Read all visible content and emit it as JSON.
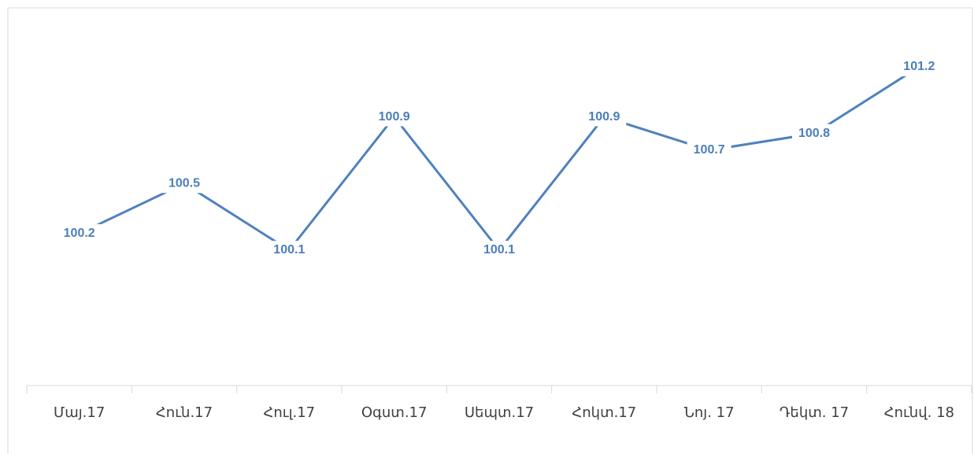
{
  "chart_data": {
    "type": "line",
    "categories": [
      "Մայ.17",
      "Հուն.17",
      "Հուլ.17",
      "Օգստ.17",
      "Սեպտ.17",
      "Հոկտ.17",
      "Նոյ. 17",
      "Դեկտ. 17",
      "Հունվ. 18"
    ],
    "series": [
      {
        "color": "#4f81bd",
        "values": [
          100.2,
          100.5,
          100.1,
          100.9,
          100.1,
          100.9,
          100.7,
          100.8,
          101.2
        ]
      }
    ],
    "data_labels": true
  }
}
